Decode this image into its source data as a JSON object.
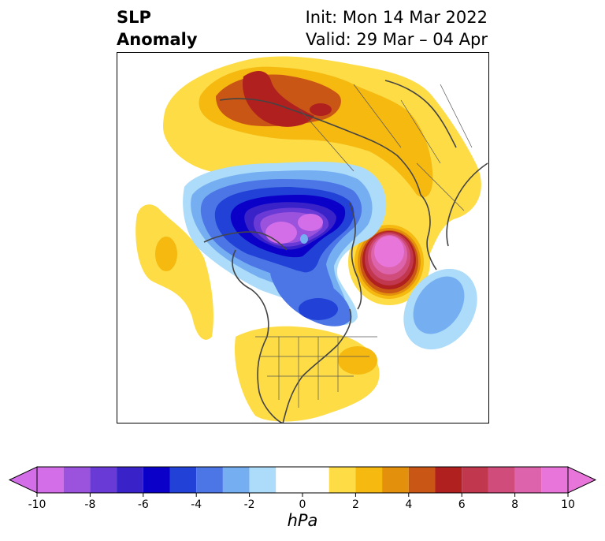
{
  "header": {
    "field_line1": "SLP",
    "field_line2": "Anomaly",
    "init_text": "Init: Mon 14 Mar 2022",
    "valid_text": "Valid: 29 Mar – 04 Apr"
  },
  "colorbar": {
    "units": "hPa",
    "tick_labels": [
      "-10",
      "-8",
      "-6",
      "-4",
      "-2",
      "0",
      "2",
      "4",
      "6",
      "8",
      "10"
    ],
    "levels": [
      -10,
      -9,
      -8,
      -7,
      -6,
      -5,
      -4,
      -3,
      -2,
      -1,
      1,
      2,
      3,
      4,
      5,
      6,
      7,
      8,
      9,
      10
    ],
    "colors": [
      "#d36ee8",
      "#9b52dd",
      "#6a3ad6",
      "#3a22c9",
      "#0a00c8",
      "#2241d6",
      "#4c76e6",
      "#75aff2",
      "#acdcf9",
      "#ffffff",
      "#fddc46",
      "#f5b910",
      "#e3900d",
      "#ca5616",
      "#b0201f",
      "#c1374d",
      "#d04d7b",
      "#dc63ac",
      "#e876da"
    ],
    "extend": "both"
  },
  "map": {
    "projection": "north-polar-stereographic",
    "field": "sea-level pressure anomaly"
  }
}
